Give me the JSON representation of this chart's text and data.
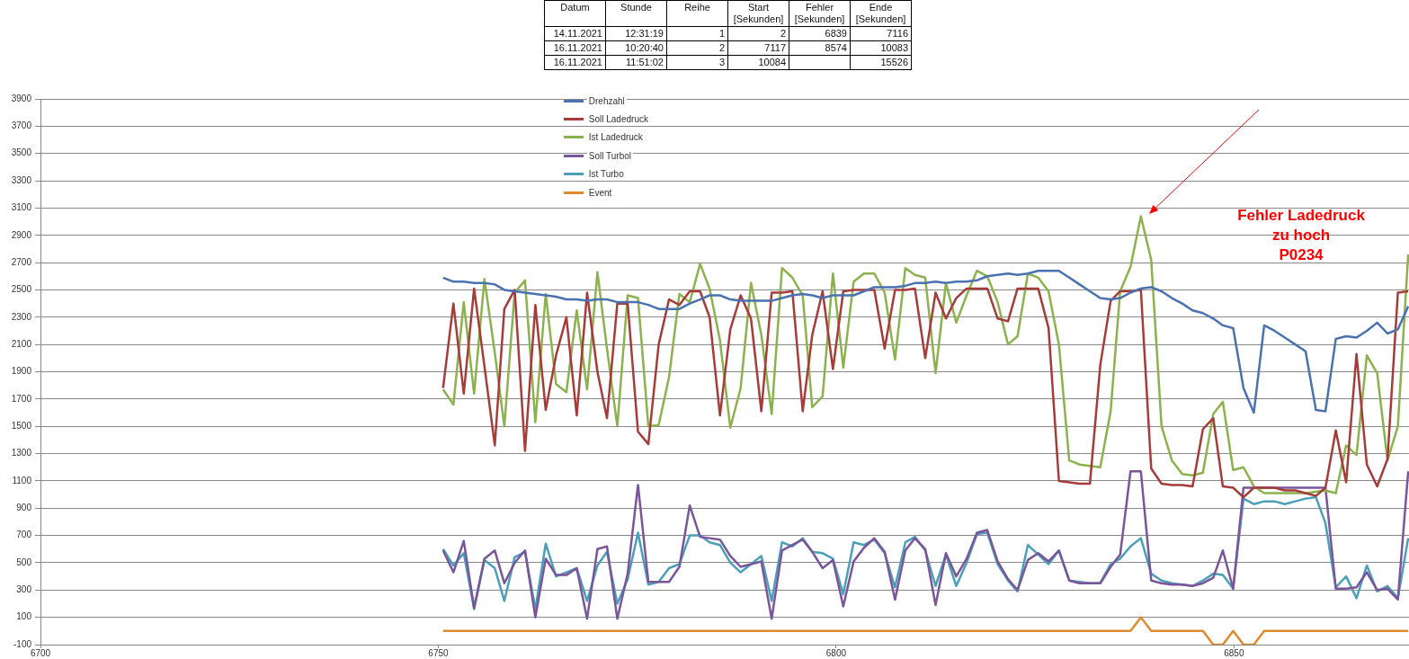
{
  "chart_data": [
    {
      "type": "other",
      "annotations": [
        "Datum",
        "Stunde",
        "Reihe",
        "Start\n[Sekunden]",
        "Fehler\n[Sekunden]",
        "Ende\n[Sekunden]",
        "14.11.2021",
        "12:31:19",
        "1",
        "2",
        "6839",
        "7116",
        "16.11.2021",
        "10:20:40",
        "2",
        "7117",
        "8574",
        "10083",
        "16.11.2021",
        "11:51:02",
        "3",
        "10084",
        null,
        "15526"
      ]
    },
    {
      "type": "line",
      "x": [
        6750.6,
        6751.9,
        6753.2,
        6754.5,
        6755.8,
        6757.1,
        6758.3,
        6759.6,
        6760.9,
        6762.2,
        6763.5,
        6764.8,
        6766.1,
        6767.4,
        6768.7,
        6770.0,
        6771.2,
        6772.5,
        6773.8,
        6775.1,
        6776.4,
        6777.7,
        6779.0,
        6780.3,
        6781.6,
        6782.9,
        6784.1,
        6785.4,
        6786.7,
        6788.0,
        6789.3,
        6790.6,
        6791.9,
        6793.2,
        6794.5,
        6795.8,
        6797.0,
        6798.3,
        6799.6,
        6800.9,
        6802.2,
        6803.5,
        6804.8,
        6806.1,
        6807.4,
        6808.7,
        6809.9,
        6811.2,
        6812.5,
        6813.8,
        6815.1,
        6816.4,
        6817.7,
        6819.0,
        6820.3,
        6821.6,
        6822.8,
        6824.1,
        6825.4,
        6826.7,
        6828.0,
        6829.3,
        6830.6,
        6831.9,
        6833.2,
        6834.5,
        6835.7,
        6837.0,
        6838.3,
        6839.6,
        6840.9,
        6842.2,
        6843.5,
        6844.8,
        6846.1,
        6847.4,
        6848.6,
        6849.9,
        6851.2,
        6852.5,
        6853.8,
        6855.1,
        6856.4,
        6857.7,
        6859.0,
        6860.3,
        6861.5,
        6862.8,
        6864.1,
        6865.4,
        6866.7,
        6868.0,
        6869.3,
        6870.6,
        6871.9
      ],
      "series": [
        {
          "name": "Drehzahl",
          "color": "#4a72b0",
          "values": [
            2590,
            2560,
            2560,
            2550,
            2550,
            2540,
            2500,
            2490,
            2480,
            2470,
            2460,
            2450,
            2430,
            2430,
            2420,
            2430,
            2430,
            2410,
            2410,
            2410,
            2390,
            2360,
            2360,
            2360,
            2400,
            2430,
            2460,
            2460,
            2430,
            2420,
            2420,
            2420,
            2420,
            2440,
            2460,
            2470,
            2460,
            2440,
            2460,
            2460,
            2460,
            2490,
            2520,
            2520,
            2520,
            2530,
            2550,
            2550,
            2560,
            2550,
            2560,
            2560,
            2570,
            2600,
            2610,
            2620,
            2610,
            2620,
            2640,
            2640,
            2640,
            2590,
            2540,
            2490,
            2440,
            2430,
            2440,
            2480,
            2510,
            2520,
            2490,
            2440,
            2400,
            2350,
            2330,
            2290,
            2240,
            2220,
            1780,
            1600,
            2240,
            2200,
            2150,
            2100,
            2050,
            1620,
            1610,
            2140,
            2160,
            2150,
            2200,
            2260,
            2180,
            2210,
            2380
          ]
        },
        {
          "name": "Soll Ladedruck",
          "color": "#a63c3a",
          "values": [
            1780,
            2400,
            1740,
            2510,
            1940,
            1360,
            2360,
            2500,
            1320,
            2390,
            1620,
            2020,
            2300,
            1580,
            2480,
            1900,
            1560,
            2400,
            2400,
            1460,
            1370,
            2100,
            2430,
            2390,
            2490,
            2490,
            2300,
            1580,
            2210,
            2460,
            2290,
            1610,
            2480,
            2480,
            2490,
            1610,
            2170,
            2490,
            1920,
            2490,
            2500,
            2500,
            2500,
            2070,
            2500,
            2500,
            2510,
            2000,
            2480,
            2290,
            2440,
            2510,
            2510,
            2510,
            2290,
            2270,
            2510,
            2510,
            2510,
            2220,
            1100,
            1090,
            1080,
            1080,
            1950,
            2420,
            2490,
            2490,
            2500,
            1190,
            1080,
            1070,
            1070,
            1060,
            1480,
            1560,
            1060,
            1050,
            980,
            1050,
            1050,
            1050,
            1030,
            1030,
            1010,
            990,
            1050,
            1470,
            1090,
            2030,
            1220,
            1060,
            1260,
            2480,
            2490
          ]
        },
        {
          "name": "Ist Ladedruck",
          "color": "#8cb24e",
          "values": [
            1770,
            1660,
            2410,
            1740,
            2580,
            2040,
            1500,
            2480,
            2570,
            1530,
            2470,
            1810,
            1750,
            2350,
            1770,
            2630,
            2070,
            1500,
            2460,
            2440,
            1500,
            1510,
            1860,
            2470,
            2410,
            2690,
            2510,
            2130,
            1490,
            1780,
            2550,
            2170,
            1590,
            2660,
            2590,
            2460,
            1640,
            1720,
            2620,
            1930,
            2560,
            2620,
            2620,
            2480,
            1990,
            2660,
            2610,
            2590,
            1890,
            2550,
            2260,
            2460,
            2640,
            2600,
            2410,
            2100,
            2160,
            2620,
            2590,
            2490,
            2100,
            1250,
            1220,
            1210,
            1200,
            1610,
            2490,
            2670,
            3040,
            2720,
            1500,
            1250,
            1150,
            1140,
            1160,
            1590,
            1680,
            1180,
            1200,
            1060,
            1010,
            1010,
            1010,
            1010,
            1010,
            1020,
            1030,
            1010,
            1360,
            1290,
            2020,
            1890,
            1250,
            1500,
            2760
          ]
        },
        {
          "name": "Soll Turbol",
          "color": "#7a559a",
          "values": [
            590,
            430,
            660,
            170,
            530,
            590,
            350,
            500,
            590,
            100,
            530,
            410,
            410,
            460,
            90,
            600,
            620,
            90,
            420,
            1070,
            360,
            360,
            360,
            470,
            920,
            690,
            680,
            670,
            550,
            470,
            490,
            510,
            90,
            590,
            630,
            670,
            580,
            460,
            520,
            180,
            510,
            610,
            680,
            580,
            230,
            590,
            680,
            600,
            190,
            570,
            400,
            530,
            720,
            740,
            510,
            380,
            300,
            520,
            570,
            510,
            590,
            370,
            350,
            350,
            350,
            470,
            560,
            1170,
            1170,
            370,
            350,
            340,
            340,
            330,
            350,
            390,
            590,
            310,
            1050,
            1050,
            1050,
            1050,
            1050,
            1050,
            1050,
            1050,
            1050,
            310,
            310,
            320,
            430,
            300,
            310,
            230,
            1170
          ]
        },
        {
          "name": "Ist Turbo",
          "color": "#4aa0b8",
          "values": [
            600,
            480,
            570,
            160,
            520,
            460,
            220,
            540,
            580,
            160,
            640,
            400,
            430,
            460,
            220,
            480,
            580,
            200,
            380,
            720,
            340,
            360,
            460,
            490,
            700,
            700,
            650,
            630,
            500,
            430,
            490,
            550,
            220,
            650,
            620,
            680,
            580,
            570,
            530,
            270,
            650,
            630,
            670,
            570,
            320,
            650,
            690,
            590,
            330,
            560,
            330,
            500,
            710,
            720,
            490,
            370,
            290,
            630,
            560,
            490,
            590,
            370,
            360,
            350,
            350,
            490,
            530,
            620,
            680,
            420,
            370,
            350,
            340,
            330,
            370,
            420,
            410,
            310,
            970,
            930,
            950,
            950,
            930,
            950,
            970,
            980,
            790,
            320,
            400,
            240,
            480,
            290,
            330,
            240,
            680
          ]
        },
        {
          "name": "Event",
          "color": "#e08a2e",
          "values": [
            0,
            0,
            0,
            0,
            0,
            0,
            0,
            0,
            0,
            0,
            0,
            0,
            0,
            0,
            0,
            0,
            0,
            0,
            0,
            0,
            0,
            0,
            0,
            0,
            0,
            0,
            0,
            0,
            0,
            0,
            0,
            0,
            0,
            0,
            0,
            0,
            0,
            0,
            0,
            0,
            0,
            0,
            0,
            0,
            0,
            0,
            0,
            0,
            0,
            0,
            0,
            0,
            0,
            0,
            0,
            0,
            0,
            0,
            0,
            0,
            0,
            0,
            0,
            0,
            0,
            0,
            0,
            0,
            100,
            0,
            0,
            0,
            0,
            0,
            0,
            -100,
            -100,
            0,
            -100,
            -100,
            0,
            0,
            0,
            0,
            0,
            0,
            0,
            0,
            0,
            0,
            0,
            0,
            0,
            0,
            0
          ]
        }
      ],
      "xlim": [
        6700,
        6872
      ],
      "xticks": [
        6700,
        6750,
        6800,
        6850
      ],
      "ylim": [
        -100,
        3900
      ],
      "yticks": [
        -100,
        100,
        300,
        500,
        700,
        900,
        1100,
        1300,
        1500,
        1700,
        1900,
        2100,
        2300,
        2500,
        2700,
        2900,
        3100,
        3300,
        3500,
        3700,
        3900
      ],
      "grid": "y",
      "legend": "top",
      "marker": "none",
      "line_style": "solid",
      "annotations": [
        "Fehler Ladedruck\nzu hoch\nP0234"
      ]
    }
  ]
}
